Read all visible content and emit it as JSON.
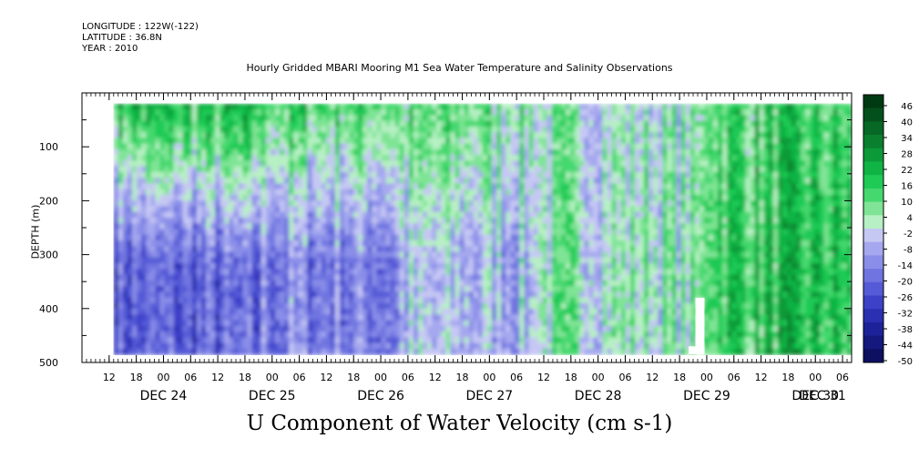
{
  "header": {
    "longitude": "LONGITUDE : 122W(-122)",
    "latitude": "LATITUDE : 36.8N",
    "year": "YEAR : 2010",
    "title": "Hourly Gridded MBARI Mooring M1 Sea Water Temperature and Salinity Observations"
  },
  "chart_data": {
    "type": "heatmap",
    "title": "Hourly Gridded MBARI Mooring M1 Sea Water Temperature and Salinity Observations",
    "xlabel": "U Component of Water Velocity (cm s-1)",
    "ylabel": "DEPTH (m)",
    "x_hour_ticks": [
      "12",
      "18",
      "00",
      "06",
      "12",
      "18",
      "00",
      "06",
      "12",
      "18",
      "00",
      "06",
      "12",
      "18",
      "00",
      "06",
      "12",
      "18",
      "00",
      "06",
      "12",
      "18",
      "00",
      "06",
      "12",
      "18",
      "00",
      "06"
    ],
    "x_day_labels": [
      "DEC 24",
      "DEC 25",
      "DEC 26",
      "DEC 27",
      "DEC 28",
      "DEC 29",
      "DEC 30",
      "DEC 31"
    ],
    "x_range_hours": [
      0,
      170
    ],
    "data_hours": [
      7,
      170
    ],
    "y_ticks": [
      100,
      200,
      300,
      400,
      500
    ],
    "ylim": [
      500,
      0
    ],
    "data_depth_range": [
      20,
      485
    ],
    "colorbar": {
      "labels": [
        "46",
        "40",
        "34",
        "28",
        "22",
        "16",
        "10",
        "4",
        "-2",
        "-8",
        "-14",
        "-20",
        "-26",
        "-32",
        "-38",
        "-44",
        "-50"
      ],
      "range": [
        -50,
        50
      ],
      "colors": [
        "#003a12",
        "#04501c",
        "#076826",
        "#0a802f",
        "#0c9a38",
        "#10b444",
        "#1fca55",
        "#45d86e",
        "#7fe495",
        "#b7f0c4",
        "#c6c8f4",
        "#a5a8ee",
        "#8a8ee8",
        "#6f74e0",
        "#555ad6",
        "#3d41c8",
        "#2b2fb2",
        "#1e2298",
        "#15187c",
        "#0d0f60"
      ]
    },
    "gaps": [
      {
        "hours": [
          135.5,
          137.5
        ],
        "depth": [
          380,
          485
        ]
      },
      {
        "hours": [
          134,
          137.5
        ],
        "depth": [
          470,
          485
        ]
      }
    ],
    "regime_summary": [
      {
        "hours": [
          7,
          40
        ],
        "surface": 20,
        "deep": -22
      },
      {
        "hours": [
          40,
          70
        ],
        "surface": 14,
        "deep": -15
      },
      {
        "hours": [
          70,
          100
        ],
        "surface": 10,
        "deep": -6
      },
      {
        "hours": [
          100,
          137
        ],
        "surface": 2,
        "deep": 4
      },
      {
        "hours": [
          137,
          170
        ],
        "surface": 14,
        "deep": 18
      }
    ]
  }
}
